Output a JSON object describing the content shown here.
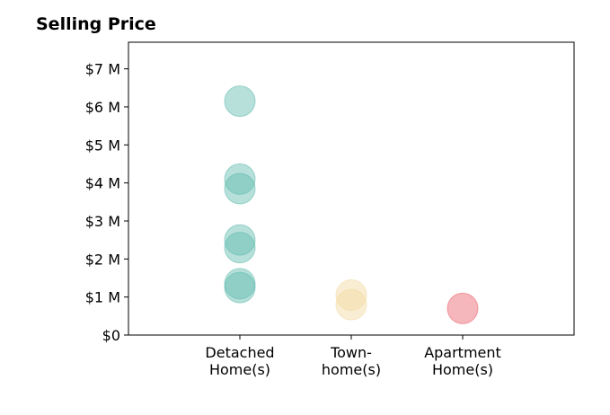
{
  "chart_data": {
    "type": "scatter",
    "title": "Selling Price",
    "xlabel": "",
    "ylabel": "",
    "categories": [
      [
        "Detached",
        "Home(s)"
      ],
      [
        "Town-",
        "home(s)"
      ],
      [
        "Apartment",
        "Home(s)"
      ]
    ],
    "xlim": [
      -1,
      3
    ],
    "ylim": [
      0,
      7.7
    ],
    "yticks": [
      0,
      1,
      2,
      3,
      4,
      5,
      6,
      7
    ],
    "ytick_labels": [
      "$0",
      "$1 M",
      "$2 M",
      "$3 M",
      "$4 M",
      "$5 M",
      "$6 M",
      "$7 M"
    ],
    "grid": false,
    "legend": "none",
    "series": [
      {
        "category_index": 0,
        "color": "#5fbaae",
        "values": [
          6.15,
          4.1,
          3.85,
          2.5,
          2.3,
          1.35,
          1.25
        ]
      },
      {
        "category_index": 1,
        "color": "#f2d9a0",
        "values": [
          1.05,
          0.8
        ]
      },
      {
        "category_index": 2,
        "color": "#e8606a",
        "values": [
          0.7
        ]
      }
    ]
  }
}
